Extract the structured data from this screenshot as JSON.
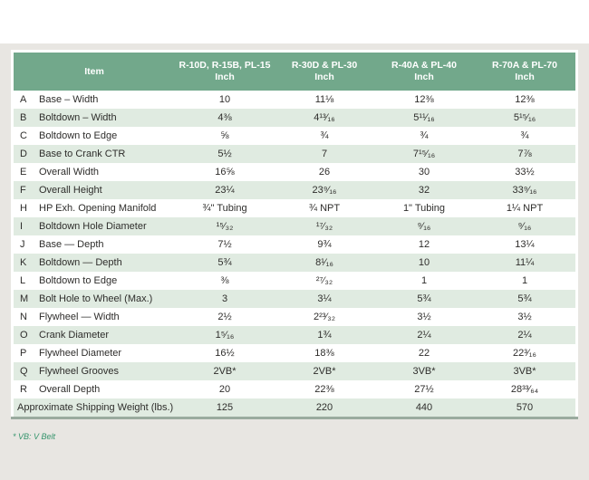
{
  "colors": {
    "header_green": "#72a88b",
    "row_tint": "#e0ebe1",
    "page_gray": "#e8e6e2",
    "footnote_green": "#35946c",
    "line": "#9aab9e",
    "text": "#2e2d2b"
  },
  "table": {
    "item_header": "Item",
    "columns": [
      {
        "model": "R-10D, R-15B, PL-15",
        "unit": "Inch"
      },
      {
        "model": "R-30D & PL-30",
        "unit": "Inch"
      },
      {
        "model": "R-40A & PL-40",
        "unit": "Inch"
      },
      {
        "model": "R-70A & PL-70",
        "unit": "Inch"
      }
    ],
    "rows": [
      {
        "letter": "A",
        "item": "Base – Width",
        "values": [
          "10",
          "11⅛",
          "12⅜",
          "12⅜"
        ]
      },
      {
        "letter": "B",
        "item": "Boltdown – Width",
        "values": [
          "4⅜",
          "4¹³⁄₁₆",
          "5¹¹⁄₁₆",
          "5¹⁵⁄₁₆"
        ]
      },
      {
        "letter": "C",
        "item": "Boltdown to Edge",
        "values": [
          "⅝",
          "¾",
          "¾",
          "¾"
        ]
      },
      {
        "letter": "D",
        "item": "Base to Crank CTR",
        "values": [
          "5½",
          "7",
          "7¹⁵⁄₁₆",
          "7⅞"
        ]
      },
      {
        "letter": "E",
        "item": "Overall Width",
        "values": [
          "16⅝",
          "26",
          "30",
          "33½"
        ]
      },
      {
        "letter": "F",
        "item": "Overall Height",
        "values": [
          "23¼",
          "23⁹⁄₁₆",
          "32",
          "33⁹⁄₁₆"
        ]
      },
      {
        "letter": "H",
        "item": "HP Exh. Opening Manifold",
        "values": [
          "¾\" Tubing",
          "¾ NPT",
          "1\" Tubing",
          "1¼ NPT"
        ]
      },
      {
        "letter": "I",
        "item": "Boltdown Hole Diameter",
        "values": [
          "¹⁵⁄₃₂",
          "¹⁷⁄₃₂",
          "⁹⁄₁₆",
          "⁹⁄₁₆"
        ]
      },
      {
        "letter": "J",
        "item": "Base — Depth",
        "values": [
          "7½",
          "9¾",
          "12",
          "13¼"
        ]
      },
      {
        "letter": "K",
        "item": "Boltdown — Depth",
        "values": [
          "5¾",
          "8¹⁄₁₆",
          "10",
          "11¼"
        ]
      },
      {
        "letter": "L",
        "item": "Boltdown to Edge",
        "values": [
          "⅜",
          "²⁷⁄₃₂",
          "1",
          "1"
        ]
      },
      {
        "letter": "M",
        "item": "Bolt Hole to Wheel (Max.)",
        "values": [
          "3",
          "3¼",
          "5¾",
          "5¾"
        ]
      },
      {
        "letter": "N",
        "item": "Flywheel — Width",
        "values": [
          "2½",
          "2²³⁄₃₂",
          "3½",
          "3½"
        ]
      },
      {
        "letter": "O",
        "item": "Crank Diameter",
        "values": [
          "1⁵⁄₁₆",
          "1¾",
          "2¼",
          "2¼"
        ]
      },
      {
        "letter": "P",
        "item": "Flywheel Diameter",
        "values": [
          "16½",
          "18⅜",
          "22",
          "22³⁄₁₆"
        ]
      },
      {
        "letter": "Q",
        "item": "Flywheel Grooves",
        "values": [
          "2VB*",
          "2VB*",
          "3VB*",
          "3VB*"
        ]
      },
      {
        "letter": "R",
        "item": "Overall Depth",
        "values": [
          "20",
          "22⅜",
          "27½",
          "28³³⁄₆₄"
        ]
      }
    ],
    "footer_row": {
      "item": "Approximate Shipping Weight (lbs.)",
      "values": [
        "125",
        "220",
        "440",
        "570"
      ]
    },
    "footnote": "* VB: V Belt"
  }
}
